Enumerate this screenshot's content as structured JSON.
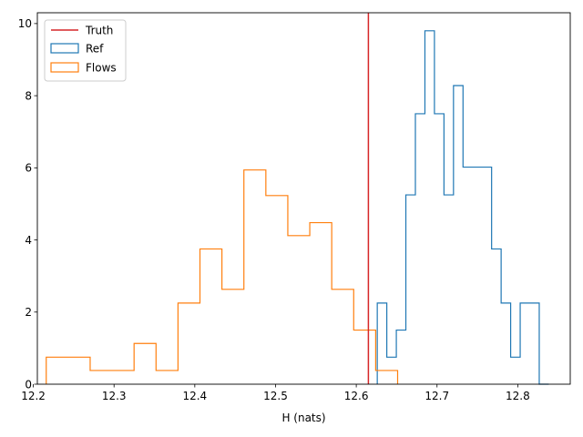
{
  "chart_data": {
    "type": "histogram",
    "xlabel": "H (nats)",
    "ylabel": "",
    "xlim": [
      12.205,
      12.865
    ],
    "ylim": [
      0,
      10.3
    ],
    "x_ticks": [
      12.2,
      12.3,
      12.4,
      12.5,
      12.6,
      12.7,
      12.8
    ],
    "x_tick_labels": [
      "12.2",
      "12.3",
      "12.4",
      "12.5",
      "12.6",
      "12.7",
      "12.8"
    ],
    "y_ticks": [
      0,
      2,
      4,
      6,
      8,
      10
    ],
    "y_tick_labels": [
      "0",
      "2",
      "4",
      "6",
      "8",
      "10"
    ],
    "legend_position": "top-left",
    "truth": {
      "name": "Truth",
      "value": 12.615,
      "color": "#d62728"
    },
    "series": [
      {
        "name": "Ref",
        "color": "#1f77b4",
        "edges": [
          12.626,
          12.6378,
          12.6496,
          12.6614,
          12.6732,
          12.685,
          12.6968,
          12.7086,
          12.7204,
          12.7322,
          12.744,
          12.7558,
          12.7676,
          12.7794,
          12.7912,
          12.803,
          12.8148,
          12.8266,
          12.8384
        ],
        "values": [
          2.25,
          0.75,
          1.5,
          5.25,
          7.5,
          9.8,
          7.5,
          5.25,
          8.28,
          6.02,
          6.02,
          6.02,
          3.75,
          2.25,
          0.75,
          2.25,
          2.25,
          0
        ]
      },
      {
        "name": "Flows",
        "color": "#ff7f0e",
        "edges": [
          12.216,
          12.2432,
          12.2704,
          12.2976,
          12.3248,
          12.352,
          12.3792,
          12.4064,
          12.4336,
          12.4608,
          12.488,
          12.5152,
          12.5424,
          12.5696,
          12.5968,
          12.624,
          12.6512
        ],
        "values": [
          0.75,
          0.75,
          0.38,
          0.38,
          1.13,
          0.38,
          2.25,
          3.75,
          2.63,
          5.94,
          5.23,
          4.12,
          4.48,
          2.63,
          1.5,
          0.38
        ]
      }
    ]
  }
}
